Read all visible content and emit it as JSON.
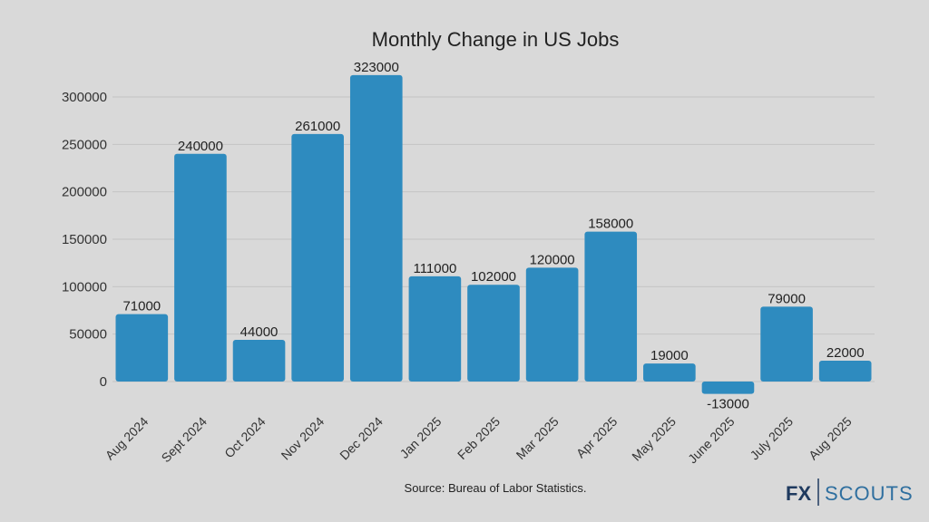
{
  "chart_data": {
    "type": "bar",
    "title": "Monthly Change in US Jobs",
    "categories": [
      "Aug 2024",
      "Sept 2024",
      "Oct 2024",
      "Nov 2024",
      "Dec 2024",
      "Jan 2025",
      "Feb 2025",
      "Mar 2025",
      "Apr 2025",
      "May 2025",
      "June 2025",
      "July 2025",
      "Aug 2025"
    ],
    "values": [
      71000,
      240000,
      44000,
      261000,
      323000,
      111000,
      102000,
      120000,
      158000,
      19000,
      -13000,
      79000,
      22000
    ],
    "data_labels": [
      "71000",
      "240000",
      "44000",
      "261000",
      "323000",
      "111000",
      "102000",
      "120000",
      "158000",
      "19000",
      "-13000",
      "79000",
      "22000"
    ],
    "yticks": [
      0,
      50000,
      100000,
      150000,
      200000,
      250000,
      300000
    ],
    "ylim": [
      -13000,
      323000
    ],
    "xlabel": "",
    "ylabel": "",
    "grid": true,
    "bar_color": "#2e8bbf",
    "background_color": "#d9d9d9"
  },
  "source": "Source: Bureau of Labor Statistics.",
  "logo": {
    "fx": "FX",
    "scouts": "SCOUTS"
  }
}
